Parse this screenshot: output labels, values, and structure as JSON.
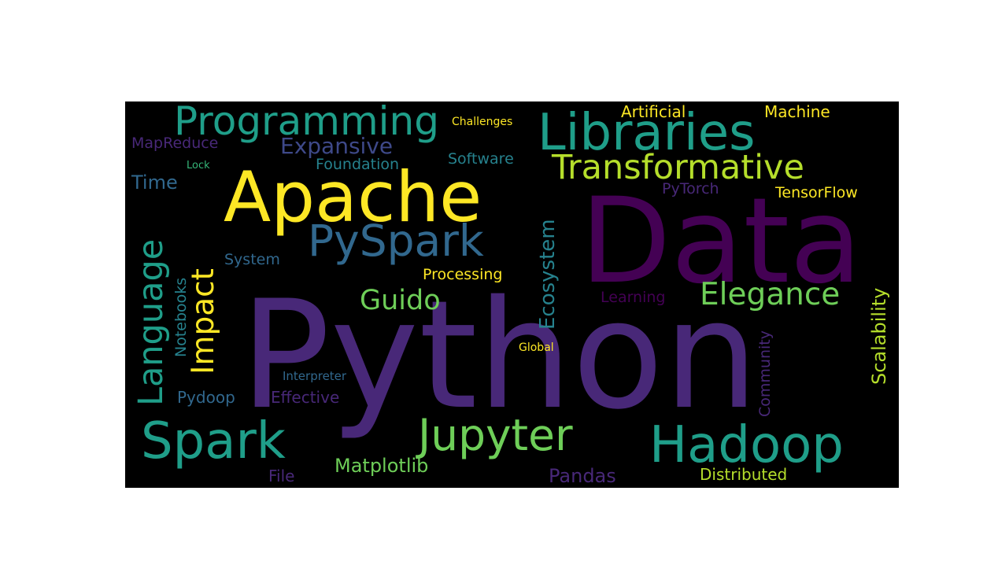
{
  "wordcloud": {
    "background": "#000000",
    "palette": {
      "dark_purple": "#440154",
      "purple": "#482878",
      "indigo": "#3e4989",
      "slate_blue": "#31688e",
      "teal_blue": "#26828e",
      "teal": "#1f9e89",
      "green": "#35b779",
      "lime": "#6ece58",
      "yellow_green": "#b5de2b",
      "yellow": "#fde725"
    },
    "words": [
      {
        "text": "Python",
        "color": "#482878"
      },
      {
        "text": "Data",
        "color": "#440154"
      },
      {
        "text": "Apache",
        "color": "#fde725"
      },
      {
        "text": "Libraries",
        "color": "#1f9e89"
      },
      {
        "text": "Programming",
        "color": "#1f9e89"
      },
      {
        "text": "Transformative",
        "color": "#b5de2b"
      },
      {
        "text": "PySpark",
        "color": "#31688e"
      },
      {
        "text": "Spark",
        "color": "#1f9e89"
      },
      {
        "text": "Jupyter",
        "color": "#6ece58"
      },
      {
        "text": "Hadoop",
        "color": "#1f9e89"
      },
      {
        "text": "Elegance",
        "color": "#6ece58"
      },
      {
        "text": "Guido",
        "color": "#6ece58"
      },
      {
        "text": "Language",
        "color": "#1f9e89"
      },
      {
        "text": "Impact",
        "color": "#fde725"
      },
      {
        "text": "Ecosystem",
        "color": "#26828e"
      },
      {
        "text": "Expansive",
        "color": "#3e4989"
      },
      {
        "text": "Artificial",
        "color": "#fde725"
      },
      {
        "text": "Machine",
        "color": "#fde725"
      },
      {
        "text": "Challenges",
        "color": "#fde725"
      },
      {
        "text": "MapReduce",
        "color": "#482878"
      },
      {
        "text": "Foundation",
        "color": "#26828e"
      },
      {
        "text": "Software",
        "color": "#26828e"
      },
      {
        "text": "Lock",
        "color": "#35b779"
      },
      {
        "text": "Time",
        "color": "#31688e"
      },
      {
        "text": "PyTorch",
        "color": "#482878"
      },
      {
        "text": "TensorFlow",
        "color": "#fde725"
      },
      {
        "text": "Scalability",
        "color": "#b5de2b"
      },
      {
        "text": "System",
        "color": "#31688e"
      },
      {
        "text": "Processing",
        "color": "#fde725"
      },
      {
        "text": "Notebooks",
        "color": "#26828e"
      },
      {
        "text": "Learning",
        "color": "#440154"
      },
      {
        "text": "Community",
        "color": "#482878"
      },
      {
        "text": "Global",
        "color": "#fde725"
      },
      {
        "text": "Interpreter",
        "color": "#31688e"
      },
      {
        "text": "Pydoop",
        "color": "#31688e"
      },
      {
        "text": "Effective",
        "color": "#482878"
      },
      {
        "text": "Matplotlib",
        "color": "#6ece58"
      },
      {
        "text": "Pandas",
        "color": "#482878"
      },
      {
        "text": "Distributed",
        "color": "#b5de2b"
      },
      {
        "text": "File",
        "color": "#482878"
      }
    ]
  }
}
